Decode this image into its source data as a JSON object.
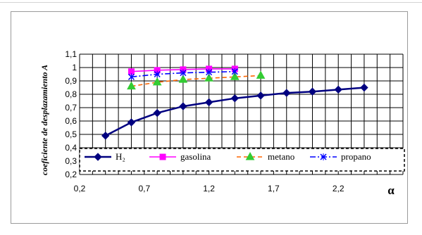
{
  "chart_data": {
    "type": "line",
    "title": "",
    "xlabel": "α",
    "ylabel": "coeficiente de desplazamiento A",
    "xlim": [
      0.2,
      2.7
    ],
    "ylim": [
      0.2,
      1.1
    ],
    "xticks": [
      0.2,
      0.7,
      1.2,
      1.7,
      2.2
    ],
    "xtick_labels": [
      "0,2",
      "0,7",
      "1,2",
      "1,7",
      "2,2"
    ],
    "yticks": [
      0.2,
      0.3,
      0.4,
      0.5,
      0.6,
      0.7,
      0.8,
      0.9,
      1.0,
      1.1
    ],
    "ytick_labels": [
      "0,2",
      "0,3",
      "0,4",
      "0,5",
      "0,6",
      "0,7",
      "0,8",
      "0,9",
      "1",
      "1,1"
    ],
    "grid": true,
    "legend_position": "bottom-inside",
    "series": [
      {
        "name": "H₂",
        "color": "#000080",
        "marker": "diamond",
        "line": "solid",
        "x": [
          0.4,
          0.6,
          0.8,
          1.0,
          1.2,
          1.4,
          1.6,
          1.8,
          2.0,
          2.2,
          2.4
        ],
        "y": [
          0.49,
          0.59,
          0.66,
          0.71,
          0.74,
          0.77,
          0.79,
          0.81,
          0.82,
          0.835,
          0.85
        ]
      },
      {
        "name": "gasolina",
        "color": "#ff00ff",
        "marker": "square",
        "line": "solid",
        "x": [
          0.6,
          0.8,
          1.0,
          1.2,
          1.4
        ],
        "y": [
          0.97,
          0.98,
          0.985,
          0.99,
          0.99
        ]
      },
      {
        "name": "metano",
        "color": "#ff6600",
        "marker": "triangle",
        "marker_color": "#33cc33",
        "line": "dashed",
        "x": [
          0.6,
          0.8,
          1.0,
          1.2,
          1.4,
          1.6
        ],
        "y": [
          0.86,
          0.89,
          0.91,
          0.92,
          0.93,
          0.94
        ]
      },
      {
        "name": "propano",
        "color": "#0000ff",
        "marker": "x",
        "line": "dashdot",
        "x": [
          0.6,
          0.8,
          1.0,
          1.2,
          1.4
        ],
        "y": [
          0.93,
          0.95,
          0.96,
          0.965,
          0.97
        ]
      }
    ]
  }
}
